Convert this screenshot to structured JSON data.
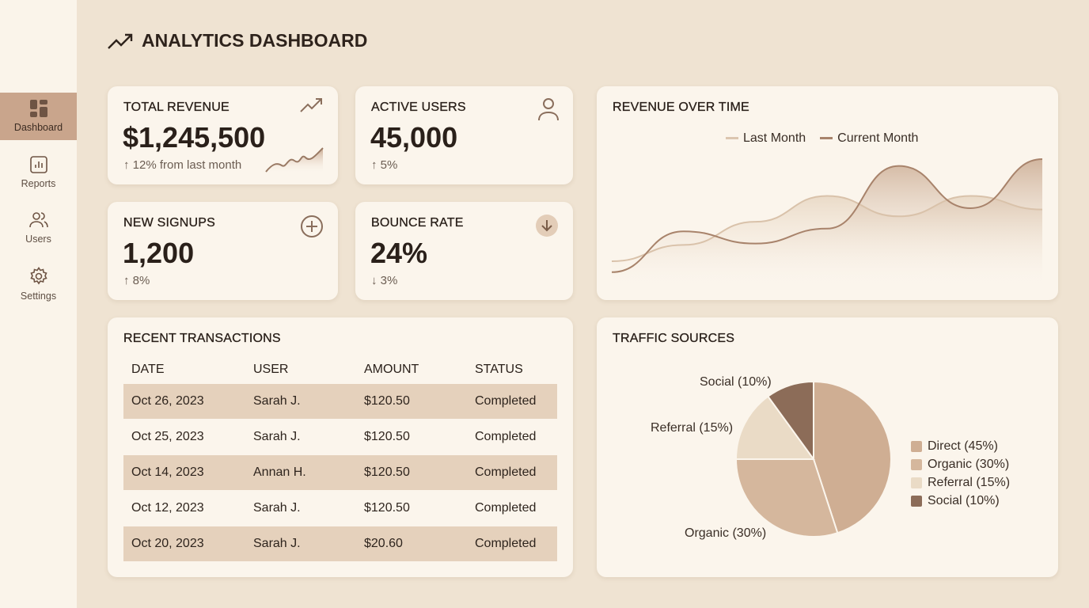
{
  "sidebar": {
    "items": [
      {
        "label": "Dashboard",
        "icon": "dashboard-icon",
        "active": true
      },
      {
        "label": "Reports",
        "icon": "reports-icon"
      },
      {
        "label": "Users",
        "icon": "users-icon"
      },
      {
        "label": "Settings",
        "icon": "gear-icon"
      }
    ]
  },
  "header": {
    "title": "ANALYTICS DASHBOARD",
    "icon": "trending-up-icon"
  },
  "kpis": {
    "revenue": {
      "label": "TOTAL REVENUE",
      "value": "$1,245,500",
      "change": "↑ 12% from last month"
    },
    "users": {
      "label": "ACTIVE USERS",
      "value": "45,000",
      "change": "↑ 5%"
    },
    "signups": {
      "label": "NEW SIGNUPS",
      "value": "1,200",
      "change": "↑ 8%"
    },
    "bounce": {
      "label": "BOUNCE RATE",
      "value": "24%",
      "change": "↓ 3%"
    }
  },
  "transactions": {
    "title": "RECENT TRANSACTIONS",
    "headers": [
      "DATE",
      "USER",
      "AMOUNT",
      "STATUS"
    ],
    "rows": [
      [
        "Oct 26, 2023",
        "Sarah J.",
        "$120.50",
        "Completed"
      ],
      [
        "Oct 25, 2023",
        "Sarah J.",
        "$120.50",
        "Completed"
      ],
      [
        "Oct 14, 2023",
        "Annan H.",
        "$120.50",
        "Completed"
      ],
      [
        "Oct 12, 2023",
        "Sarah J.",
        "$120.50",
        "Completed"
      ],
      [
        "Oct 20, 2023",
        "Sarah J.",
        "$20.60",
        "Completed"
      ]
    ]
  },
  "colors": {
    "accent": "#a8836b",
    "dark": "#8c6c58"
  },
  "chart_data": [
    {
      "type": "area",
      "title": "REVENUE OVER TIME",
      "x": [
        1,
        2,
        3,
        4,
        5,
        6,
        7
      ],
      "series": [
        {
          "name": "Last Month",
          "color": "#d9c2aa",
          "values": [
            18,
            30,
            47,
            66,
            51,
            66,
            56
          ]
        },
        {
          "name": "Current Month",
          "color": "#a8836b",
          "values": [
            10,
            40,
            31,
            42,
            88,
            57,
            93
          ]
        }
      ],
      "ylim": [
        0,
        100
      ],
      "grid": false,
      "legend": "top-center"
    },
    {
      "type": "pie",
      "title": "TRAFFIC SOURCES",
      "slices": [
        {
          "name": "Direct",
          "value": 45,
          "label": "Direct (45%)",
          "color": "#cfae93"
        },
        {
          "name": "Organic",
          "value": 30,
          "label": "Organic (30%)",
          "color": "#d5b79d"
        },
        {
          "name": "Referral",
          "value": 15,
          "label": "Referral (15%)",
          "color": "#eadbc6"
        },
        {
          "name": "Social",
          "value": 10,
          "label": "Social (10%)",
          "color": "#8c6c58"
        }
      ],
      "legend": "right"
    }
  ]
}
